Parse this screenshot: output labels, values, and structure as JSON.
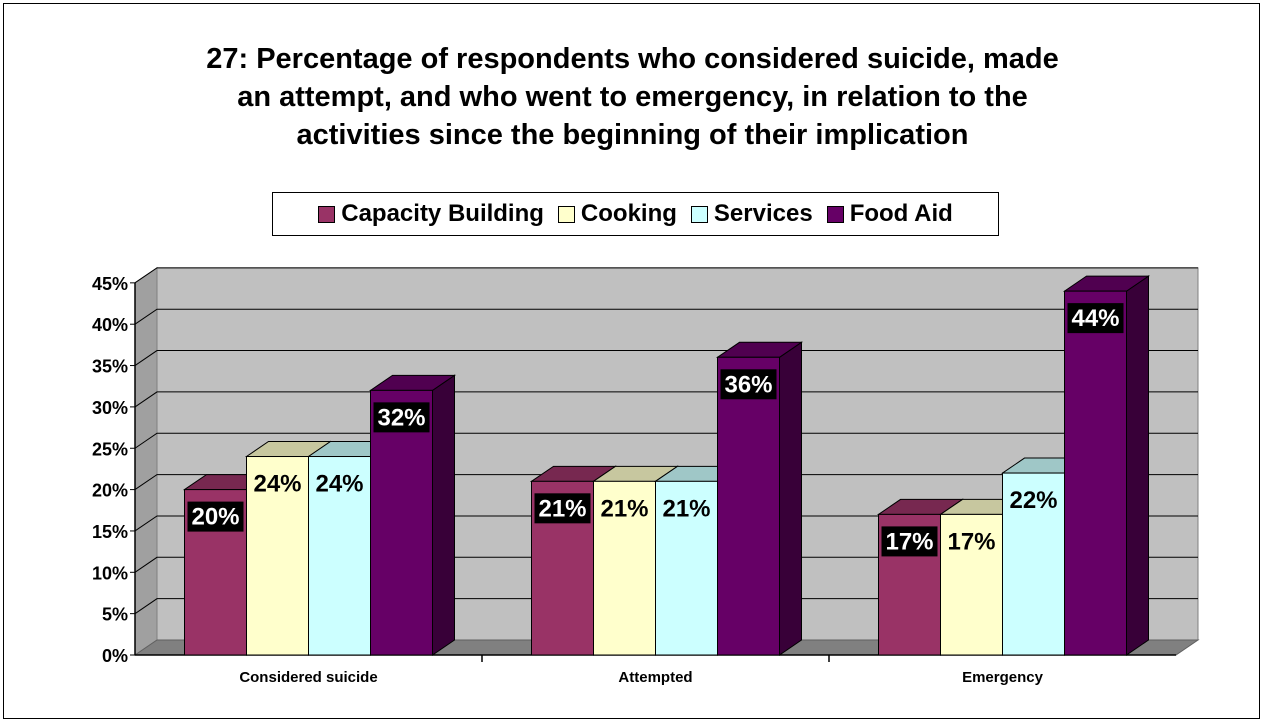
{
  "chart_data": {
    "type": "bar",
    "title": [
      "27:  Percentage of respondents who considered suicide, made",
      "an attempt, and who went to emergency, in relation to the",
      "activities since the beginning of their implication"
    ],
    "categories": [
      "Considered suicide",
      "Attempted",
      "Emergency"
    ],
    "series": [
      {
        "name": "Capacity Building",
        "values": [
          20,
          21,
          17
        ],
        "labels": [
          "20%",
          "21%",
          "17%"
        ]
      },
      {
        "name": "Cooking",
        "values": [
          24,
          21,
          17
        ],
        "labels": [
          "24%",
          "21%",
          "17%"
        ]
      },
      {
        "name": "Services",
        "values": [
          24,
          21,
          22
        ],
        "labels": [
          "24%",
          "21%",
          "22%"
        ]
      },
      {
        "name": "Food Aid",
        "values": [
          32,
          36,
          44
        ],
        "labels": [
          "32%",
          "36%",
          "44%"
        ]
      }
    ],
    "colors": {
      "Capacity Building": "#993366",
      "Cooking": "#FFFFCC",
      "Services": "#CCFFFF",
      "Food Aid": "#660066",
      "wall": "#C0C0C0",
      "floor": "#808080"
    },
    "ylim": [
      0,
      45
    ],
    "yticks": [
      "0%",
      "5%",
      "10%",
      "15%",
      "20%",
      "25%",
      "30%",
      "35%",
      "40%",
      "45%"
    ],
    "grid": true,
    "legend_position": "top",
    "three_d": true
  }
}
